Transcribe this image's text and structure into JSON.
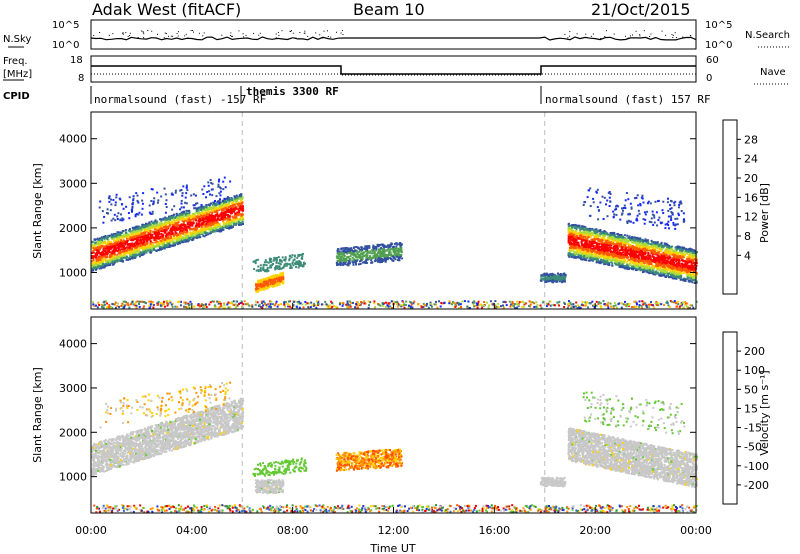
{
  "header": {
    "station": "Adak West (fitACF)",
    "beam": "Beam 10",
    "date": "21/Oct/2015"
  },
  "panels": {
    "nsky": {
      "label": "N.Sky",
      "ymax_label": "10^5",
      "ymin_label": "10^0"
    },
    "nsearch": {
      "label": "N.Search",
      "ymax_label": "10^5",
      "ymin_label": "10^0"
    },
    "freq": {
      "label_1": "Freq.",
      "label_2": "[MHz]",
      "ymax_label": "18",
      "ymin_label": "8"
    },
    "nave": {
      "label": "Nave",
      "ymax_label": "60",
      "ymin_label": "0"
    },
    "cpid": {
      "label": "CPID",
      "segments": [
        {
          "text": "normalsound (fast) -157 RF"
        },
        {
          "text": "themis 3300 RF"
        },
        {
          "text": "normalsound (fast) 157 RF"
        }
      ]
    }
  },
  "power_panel": {
    "ylabel": "Slant Range [km]",
    "cbar_label": "Power [dB]",
    "cbar_ticks": [
      "28",
      "24",
      "20",
      "16",
      "12",
      "8",
      "4"
    ],
    "cbar_colors": [
      "#ff0000",
      "#ff5a00",
      "#ff9600",
      "#ffd200",
      "#aadc3c",
      "#50a050",
      "#3c8c78",
      "#3250a0",
      "#1428ff"
    ]
  },
  "velocity_panel": {
    "ylabel": "Slant Range [km]",
    "cbar_label": "Velocity [m s⁻¹]",
    "cbar_ticks": [
      "200",
      "100",
      "50",
      "15",
      "-15",
      "-50",
      "-100",
      "-200"
    ],
    "cbar_colors": [
      "#1e32c8",
      "#3264dc",
      "#2d9632",
      "#64c832",
      "#c8c8c8",
      "#ffd200",
      "#ff9600",
      "#ff5000",
      "#e60000"
    ]
  },
  "axes": {
    "y_ticks": [
      "4000",
      "3000",
      "2000",
      "1000"
    ],
    "x_ticks": [
      "00:00",
      "04:00",
      "08:00",
      "12:00",
      "16:00",
      "20:00",
      "00:00"
    ],
    "xlabel": "Time UT"
  },
  "chart_data": [
    {
      "type": "heatmap",
      "title": "Power",
      "xlabel": "Time UT",
      "ylabel": "Slant Range [km]",
      "xlim": [
        0,
        24
      ],
      "ylim": [
        180,
        4600
      ],
      "colorbar": {
        "label": "Power [dB]",
        "range": [
          0,
          32
        ]
      },
      "features": [
        {
          "label": "main echo band",
          "t_start": 0.0,
          "t_end": 6.0,
          "range_start_km": 1400,
          "range_end_km": 2450,
          "power_db": 30
        },
        {
          "label": "echo patch",
          "t_start": 6.5,
          "t_end": 7.6,
          "range_km": 800,
          "power_db": 26
        },
        {
          "label": "echo patch",
          "t_start": 9.7,
          "t_end": 12.3,
          "range_km": 1400,
          "power_db": 12
        },
        {
          "label": "echo patch",
          "t_start": 17.8,
          "t_end": 18.8,
          "range_km": 900,
          "power_db": 8
        },
        {
          "label": "main echo band",
          "t_start": 18.9,
          "t_end": 24.0,
          "range_start_km": 1700,
          "range_end_km": 1150,
          "power_db": 30
        }
      ]
    },
    {
      "type": "heatmap",
      "title": "Velocity",
      "xlabel": "Time UT",
      "ylabel": "Slant Range [km]",
      "xlim": [
        0,
        24
      ],
      "ylim": [
        180,
        4600
      ],
      "colorbar": {
        "label": "Velocity [m s⁻¹]",
        "range": [
          -250,
          250
        ]
      },
      "features": [
        {
          "label": "ground scatter band",
          "t_start": 0.0,
          "t_end": 6.0,
          "velocity_ms": 0
        },
        {
          "label": "echo patch",
          "t_start": 9.7,
          "t_end": 12.3,
          "range_km": 1400,
          "velocity_ms": -80
        },
        {
          "label": "ground scatter band",
          "t_start": 18.9,
          "t_end": 24.0,
          "velocity_ms": 0
        }
      ]
    }
  ]
}
